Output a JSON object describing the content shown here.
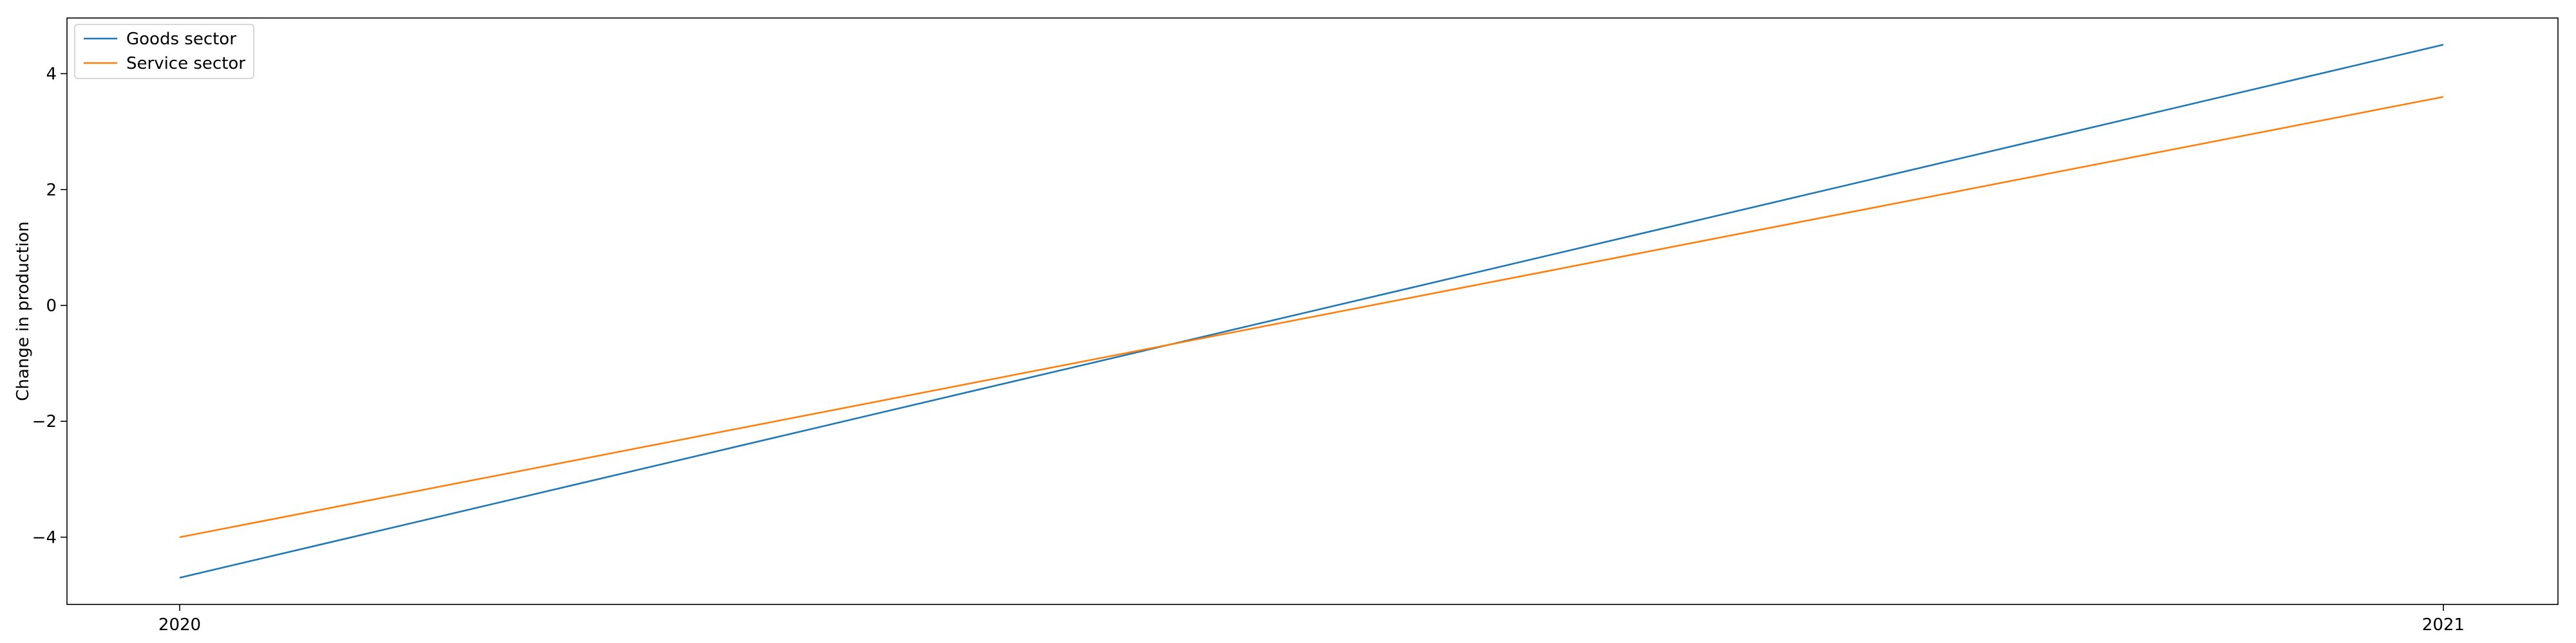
{
  "chart_data": {
    "type": "line",
    "x": [
      "2020",
      "2021"
    ],
    "series": [
      {
        "name": "Goods sector",
        "values": [
          -4.7,
          4.5
        ],
        "color": "#1f77b4"
      },
      {
        "name": "Service sector",
        "values": [
          -4.0,
          3.6
        ],
        "color": "#ff7f0e"
      }
    ],
    "title": "",
    "xlabel": "",
    "ylabel": "Change in production",
    "ylim": [
      -5.16,
      4.96
    ],
    "yticks": [
      -4,
      -2,
      0,
      2,
      4
    ],
    "grid": false,
    "legend": "top-left"
  }
}
